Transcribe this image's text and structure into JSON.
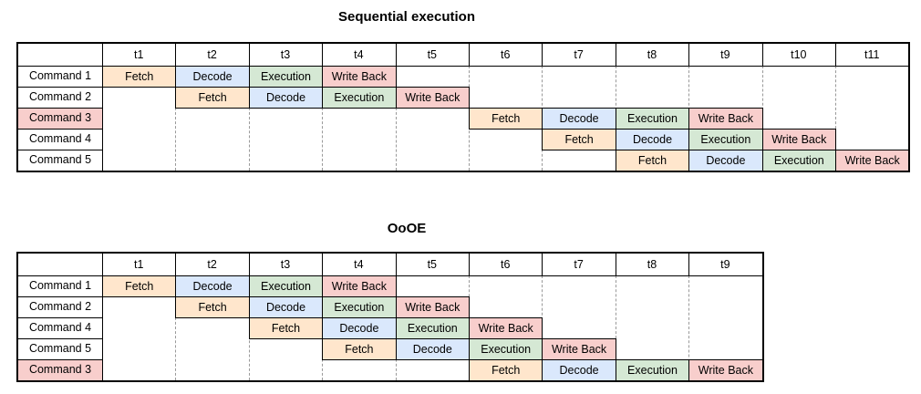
{
  "page": {
    "background": "#ffffff"
  },
  "palette": {
    "fetch_fill": "#FFE6CC",
    "decode_fill": "#DAE8FC",
    "execution_fill": "#D5E8D4",
    "write_back_fill": "#F8CECC",
    "highlight_row_fill": "#F8CECC",
    "table_border": "#000000",
    "grid_dash": "#999999",
    "text": "#000000"
  },
  "charts": [
    {
      "title": "Sequential execution",
      "time_labels": [
        "t1",
        "t2",
        "t3",
        "t4",
        "t5",
        "t6",
        "t7",
        "t8",
        "t9",
        "t10",
        "t11"
      ],
      "rows": [
        {
          "label": "Command 1",
          "highlighted": false,
          "stages": [
            {
              "label": "Fetch",
              "type": "fetch",
              "col": 0
            },
            {
              "label": "Decode",
              "type": "decode",
              "col": 1
            },
            {
              "label": "Execution",
              "type": "execution",
              "col": 2
            },
            {
              "label": "Write Back",
              "type": "write_back",
              "col": 3
            }
          ]
        },
        {
          "label": "Command 2",
          "highlighted": false,
          "stages": [
            {
              "label": "Fetch",
              "type": "fetch",
              "col": 1
            },
            {
              "label": "Decode",
              "type": "decode",
              "col": 2
            },
            {
              "label": "Execution",
              "type": "execution",
              "col": 3
            },
            {
              "label": "Write Back",
              "type": "write_back",
              "col": 4
            }
          ]
        },
        {
          "label": "Command 3",
          "highlighted": true,
          "stages": [
            {
              "label": "Fetch",
              "type": "fetch",
              "col": 5
            },
            {
              "label": "Decode",
              "type": "decode",
              "col": 6
            },
            {
              "label": "Execution",
              "type": "execution",
              "col": 7
            },
            {
              "label": "Write Back",
              "type": "write_back",
              "col": 8
            }
          ]
        },
        {
          "label": "Command 4",
          "highlighted": false,
          "stages": [
            {
              "label": "Fetch",
              "type": "fetch",
              "col": 6
            },
            {
              "label": "Decode",
              "type": "decode",
              "col": 7
            },
            {
              "label": "Execution",
              "type": "execution",
              "col": 8
            },
            {
              "label": "Write Back",
              "type": "write_back",
              "col": 9
            }
          ]
        },
        {
          "label": "Command 5",
          "highlighted": false,
          "stages": [
            {
              "label": "Fetch",
              "type": "fetch",
              "col": 7
            },
            {
              "label": "Decode",
              "type": "decode",
              "col": 8
            },
            {
              "label": "Execution",
              "type": "execution",
              "col": 9
            },
            {
              "label": "Write Back",
              "type": "write_back",
              "col": 10
            }
          ]
        }
      ]
    },
    {
      "title": "OoOE",
      "time_labels": [
        "t1",
        "t2",
        "t3",
        "t4",
        "t5",
        "t6",
        "t7",
        "t8",
        "t9"
      ],
      "rows": [
        {
          "label": "Command 1",
          "highlighted": false,
          "stages": [
            {
              "label": "Fetch",
              "type": "fetch",
              "col": 0
            },
            {
              "label": "Decode",
              "type": "decode",
              "col": 1
            },
            {
              "label": "Execution",
              "type": "execution",
              "col": 2
            },
            {
              "label": "Write Back",
              "type": "write_back",
              "col": 3
            }
          ]
        },
        {
          "label": "Command 2",
          "highlighted": false,
          "stages": [
            {
              "label": "Fetch",
              "type": "fetch",
              "col": 1
            },
            {
              "label": "Decode",
              "type": "decode",
              "col": 2
            },
            {
              "label": "Execution",
              "type": "execution",
              "col": 3
            },
            {
              "label": "Write Back",
              "type": "write_back",
              "col": 4
            }
          ]
        },
        {
          "label": "Command 4",
          "highlighted": false,
          "stages": [
            {
              "label": "Fetch",
              "type": "fetch",
              "col": 2
            },
            {
              "label": "Decode",
              "type": "decode",
              "col": 3
            },
            {
              "label": "Execution",
              "type": "execution",
              "col": 4
            },
            {
              "label": "Write Back",
              "type": "write_back",
              "col": 5
            }
          ]
        },
        {
          "label": "Command 5",
          "highlighted": false,
          "stages": [
            {
              "label": "Fetch",
              "type": "fetch",
              "col": 3
            },
            {
              "label": "Decode",
              "type": "decode",
              "col": 4
            },
            {
              "label": "Execution",
              "type": "execution",
              "col": 5
            },
            {
              "label": "Write Back",
              "type": "write_back",
              "col": 6
            }
          ]
        },
        {
          "label": "Command 3",
          "highlighted": true,
          "stages": [
            {
              "label": "Fetch",
              "type": "fetch",
              "col": 5
            },
            {
              "label": "Decode",
              "type": "decode",
              "col": 6
            },
            {
              "label": "Execution",
              "type": "execution",
              "col": 7
            },
            {
              "label": "Write Back",
              "type": "write_back",
              "col": 8
            }
          ]
        }
      ]
    }
  ]
}
